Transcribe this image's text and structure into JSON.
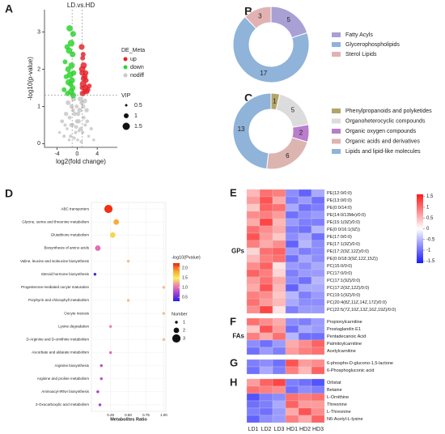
{
  "chart_data": [
    {
      "type": "scatter",
      "label": "A",
      "title": "LD.vs.HD",
      "x_label": "log2(fold change)",
      "y_label": "-log10(p-value)",
      "xlim": [
        -6.5,
        8
      ],
      "ylim": [
        -0.1,
        3.6
      ],
      "xticks": [
        -4,
        0,
        4
      ],
      "yticks": [
        0,
        1,
        2,
        3
      ],
      "thresholds": {
        "x": [
          -1,
          1
        ],
        "y": 1.3
      },
      "legend_title": "DE_Meta",
      "size_title": "VIP",
      "size_ticks": [
        0.5,
        1,
        1.5
      ],
      "series": [
        {
          "name": "up",
          "color": "#e8242b",
          "x": [
            0.9,
            1.1,
            1.3,
            1.0,
            1.5,
            1.8,
            1.2,
            0.95,
            1.6,
            2.1,
            1.4,
            1.1,
            1.7,
            2.4,
            1.0,
            1.3,
            1.9,
            1.2
          ],
          "y": [
            2.6,
            2.3,
            2.1,
            1.9,
            1.8,
            1.7,
            1.6,
            1.5,
            1.5,
            1.45,
            1.4,
            1.35,
            1.9,
            1.55,
            2.0,
            1.75,
            1.4,
            2.4
          ],
          "vip": [
            1.2,
            1.0,
            1.3,
            1.1,
            1.2,
            1.0,
            1.4,
            0.9,
            1.3,
            1.1,
            1.0,
            1.2,
            1.1,
            1.0,
            1.3,
            1.2,
            1.1,
            1.0
          ]
        },
        {
          "name": "down",
          "color": "#2fd62f",
          "x": [
            -1.5,
            -0.8,
            -1.2,
            -2.0,
            -1.6,
            -0.9,
            -2.4,
            -1.1,
            -1.8,
            -0.7,
            -1.4,
            -2.2,
            -1.0,
            -1.7,
            -1.3,
            -0.9,
            -2.6,
            -1.2,
            -1.9,
            -0.8
          ],
          "y": [
            3.1,
            2.95,
            2.7,
            2.6,
            2.5,
            2.4,
            2.2,
            2.1,
            2.0,
            1.9,
            1.85,
            1.8,
            1.7,
            1.65,
            1.6,
            1.5,
            1.45,
            1.4,
            1.35,
            1.3
          ],
          "vip": [
            1.3,
            1.2,
            1.4,
            1.1,
            1.3,
            1.2,
            1.0,
            1.3,
            1.2,
            1.1,
            1.4,
            1.0,
            1.2,
            1.3,
            1.1,
            1.2,
            1.0,
            1.3,
            1.1,
            1.2
          ]
        },
        {
          "name": "nodiff",
          "color": "#c8c8c8",
          "x": [
            -3.5,
            -3.0,
            -2.6,
            -2.2,
            -2.0,
            -1.8,
            -1.5,
            -1.3,
            -1.1,
            -0.9,
            -0.7,
            -0.5,
            -0.3,
            -0.1,
            0.1,
            0.3,
            0.5,
            0.7,
            0.9,
            1.1,
            1.3,
            1.6,
            1.9,
            2.3,
            2.8,
            3.3,
            -1.2,
            -0.6,
            0.0,
            0.6,
            1.2,
            -0.8,
            0.4,
            -0.2,
            0.2,
            -1.6,
            1.5,
            -2.4,
            2.0,
            0.8
          ],
          "y": [
            0.3,
            0.6,
            0.2,
            0.8,
            0.4,
            1.1,
            0.7,
            0.2,
            1.0,
            0.5,
            1.2,
            0.8,
            0.3,
            1.0,
            0.1,
            0.6,
            0.9,
            0.4,
            1.1,
            0.3,
            0.7,
            0.5,
            0.9,
            0.2,
            0.4,
            0.1,
            0.5,
            0.15,
            0.6,
            1.2,
            1.0,
            0.9,
            0.35,
            0.45,
            0.8,
            0.1,
            1.15,
            0.5,
            0.6,
            0.05
          ],
          "vip": [
            0.6,
            0.8,
            0.7,
            0.9,
            0.6,
            1.0,
            0.8,
            0.7,
            0.9,
            0.8,
            1.0,
            0.9,
            0.7,
            0.8,
            0.6,
            0.9,
            1.0,
            0.8,
            0.9,
            0.7,
            0.8,
            0.7,
            0.9,
            0.6,
            0.7,
            0.6,
            0.8,
            0.7,
            0.9,
            1.0,
            0.9,
            0.8,
            0.7,
            0.8,
            0.9,
            0.6,
            1.0,
            0.7,
            0.8,
            0.6
          ]
        }
      ]
    },
    {
      "type": "pie",
      "label": "B",
      "categories": [
        "Fatty Acyls",
        "Glycerophospholipids",
        "Sterol Lipids"
      ],
      "values": [
        5,
        17,
        3
      ],
      "colors": [
        "#a9a0d6",
        "#8fb3d9",
        "#e2b2b2"
      ]
    },
    {
      "type": "pie",
      "label": "C",
      "categories": [
        "Phenylpropanoids and polyketides",
        "Organoheterocyclic compounds",
        "Organic oxygen compounds",
        "Organic acids and derivatives",
        "Lipids and lipid-like molecules"
      ],
      "values": [
        1,
        5,
        2,
        6,
        13
      ],
      "colors": [
        "#b3a56a",
        "#dcdcdc",
        "#b97dcc",
        "#dcb4b0",
        "#8fb3d9"
      ]
    },
    {
      "type": "bubble",
      "label": "D",
      "x_label": "Metabolites Ratio",
      "categories": [
        "ABC transporters",
        "Glycine, serine and threonine metabolism",
        "Glutathione metabolism",
        "Biosynthesis of amino acids",
        "Valine, leucine and isoleucine biosynthesis",
        "Steroid hormone biosynthesis",
        "Progesterone-mediated oocyte maturation",
        "Porphyrin and chlorophyll metabolism",
        "Oocyte meiosis",
        "Lysine degradation",
        "D-Arginine and D-ornithine metabolism",
        "Ascorbate and aldarate metabolism",
        "Arginine biosynthesis",
        "Arginine and proline metabolism",
        "Aminoacyl-tRNA biosynthesis",
        "2-Oxocarboxylic acid metabolism"
      ],
      "values": [
        0.22,
        0.33,
        0.28,
        0.07,
        0.5,
        0.03,
        1.0,
        0.5,
        1.0,
        0.25,
        1.0,
        0.25,
        0.12,
        0.12,
        0.07,
        0.1
      ],
      "number": [
        3,
        2,
        2,
        2,
        1,
        1,
        1,
        1,
        1,
        1,
        1,
        1,
        1,
        1,
        1,
        1
      ],
      "pvalue": [
        2.2,
        1.8,
        1.6,
        1.0,
        1.3,
        0.4,
        1.3,
        1.3,
        1.3,
        1.1,
        1.3,
        1.0,
        0.8,
        0.8,
        0.7,
        0.7
      ],
      "xlim": [
        -0.02,
        1.03
      ],
      "xticks": [
        0.25,
        {
          "value": 0.5,
          "label": "0.50"
        },
        0.75,
        {
          "value": 1,
          "label": "1.00"
        }
      ],
      "color_title": "-log10(Pvalue)",
      "clim": [
        0.3,
        2.25
      ],
      "cticks": [
        0.5,
        {
          "value": 1,
          "label": "1.0"
        },
        1.5,
        {
          "value": 2,
          "label": "2.0"
        }
      ],
      "colors": [
        "#2020f0",
        "#a040d0",
        "#f07ab0",
        "#f8f060",
        "#f8a030",
        "#f02010"
      ],
      "size_title": "Number",
      "size_ticks": [
        1,
        2,
        3
      ],
      "grid": true
    },
    {
      "type": "heatmap",
      "columns": [
        "LD1",
        "LD2",
        "LD3",
        "HD1",
        "HD2",
        "HD3"
      ],
      "clim": [
        -1.6,
        1.6
      ],
      "cticks": [
        1.5,
        1,
        0.5,
        0,
        -0.5,
        -1,
        -1.5
      ],
      "colors": [
        "#1a1aff",
        "#ffffff",
        "#ff1a1a"
      ],
      "groups": [
        {
          "label": "E",
          "name": "GPs",
          "rows": [
            "PE(12:0/0:0)",
            "PE(13:0/0:0)",
            "PE(0:0/14:0)",
            "PE(14:0/13Me)/0:0)",
            "PE(15:1(9Z)/0:0)",
            "PE(0:0/16:1(9Z))",
            "PE(17:0/0:0)",
            "PE(17:1(9Z)/0:0)",
            "PE(17:2(9Z,12Z)/0:0)",
            "PE(0:0/18:3(9Z,12Z,15Z))",
            "PC(15:0/0:0)",
            "PC(17:0/0:0)",
            "PC(17:1(9Z)/0:0)",
            "PC(17:2(9Z,12Z)/0:0)",
            "PC(19:1(9Z)/0:0)",
            "PC(20:4(8Z,11Z,14Z,17Z)/0:0)",
            "PC(22:5(7Z,10Z,13Z,16Z,19Z)/0:0)"
          ],
          "values": [
            [
              0.5,
              1.0,
              0.9,
              -0.8,
              -1.1,
              -0.6
            ],
            [
              0.7,
              1.2,
              0.6,
              -0.9,
              -0.7,
              -1.0
            ],
            [
              0.4,
              1.1,
              1.0,
              -0.6,
              -1.0,
              -0.9
            ],
            [
              0.8,
              0.9,
              0.7,
              -1.0,
              -0.8,
              -0.7
            ],
            [
              0.6,
              1.3,
              0.5,
              -0.7,
              -0.9,
              -0.9
            ],
            [
              1.0,
              0.8,
              0.6,
              -0.9,
              -1.0,
              -0.5
            ],
            [
              1.2,
              0.7,
              0.4,
              -0.8,
              -0.6,
              -1.0
            ],
            [
              0.9,
              0.6,
              0.8,
              -1.1,
              -0.5,
              -0.8
            ],
            [
              0.3,
              1.0,
              1.1,
              -0.7,
              -0.9,
              -0.8
            ],
            [
              0.5,
              0.9,
              1.0,
              -1.0,
              -0.6,
              -0.8
            ],
            [
              0.8,
              1.1,
              0.2,
              -0.7,
              -0.8,
              -0.6
            ],
            [
              1.1,
              0.9,
              0.3,
              -0.9,
              -0.7,
              -0.7
            ],
            [
              0.7,
              1.0,
              0.6,
              -0.8,
              -1.0,
              -0.5
            ],
            [
              0.6,
              1.2,
              0.5,
              -1.1,
              -0.6,
              -0.6
            ],
            [
              0.9,
              0.8,
              0.4,
              -0.5,
              -0.9,
              -0.7
            ],
            [
              1.0,
              0.7,
              0.5,
              -0.6,
              -0.8,
              -0.8
            ],
            [
              0.8,
              1.3,
              0.2,
              -0.9,
              -0.7,
              -0.7
            ]
          ]
        },
        {
          "label": "F",
          "name": "FAs",
          "rows": [
            "Propionylcarnitine",
            "Prostaglandin E1",
            "Pentadecanoic Acid",
            "Palmitoylcarnitine",
            "Acetylcarnitine"
          ],
          "values": [
            [
              1.0,
              0.8,
              0.6,
              -0.8,
              -0.9,
              -0.7
            ],
            [
              0.4,
              1.2,
              0.7,
              -1.0,
              -0.6,
              -0.7
            ],
            [
              0.9,
              0.6,
              1.0,
              -0.5,
              -1.0,
              -1.0
            ],
            [
              -0.8,
              -1.0,
              -0.7,
              0.6,
              0.8,
              1.1
            ],
            [
              -1.0,
              -0.7,
              -0.9,
              0.7,
              0.9,
              1.0
            ]
          ]
        },
        {
          "label": "G",
          "rows": [
            "6-phospho-D-glucono-1,5-lactone",
            "6-Phosphogluconic acid"
          ],
          "values": [
            [
              -0.9,
              -0.8,
              -1.0,
              1.2,
              0.7,
              0.8
            ],
            [
              -1.0,
              -0.6,
              -0.9,
              0.9,
              0.5,
              1.1
            ]
          ]
        },
        {
          "label": "H",
          "rows": [
            "Orlistat",
            "Betaine",
            "L-Ornithine",
            "Threonine",
            "L-Threonine",
            "N6-Acetyl-L-lysine"
          ],
          "values": [
            [
              0.7,
              1.1,
              1.3,
              -0.9,
              -1.0,
              -1.2
            ],
            [
              1.0,
              0.9,
              0.8,
              -1.0,
              -0.8,
              -0.9
            ],
            [
              -1.2,
              -0.9,
              -0.8,
              1.0,
              0.9,
              1.0
            ],
            [
              -1.0,
              -0.9,
              -0.6,
              1.1,
              0.7,
              0.7
            ],
            [
              -0.9,
              -1.0,
              -0.7,
              0.6,
              1.2,
              0.8
            ],
            [
              -1.1,
              -0.8,
              -0.7,
              0.9,
              0.6,
              1.1
            ]
          ]
        }
      ]
    }
  ]
}
